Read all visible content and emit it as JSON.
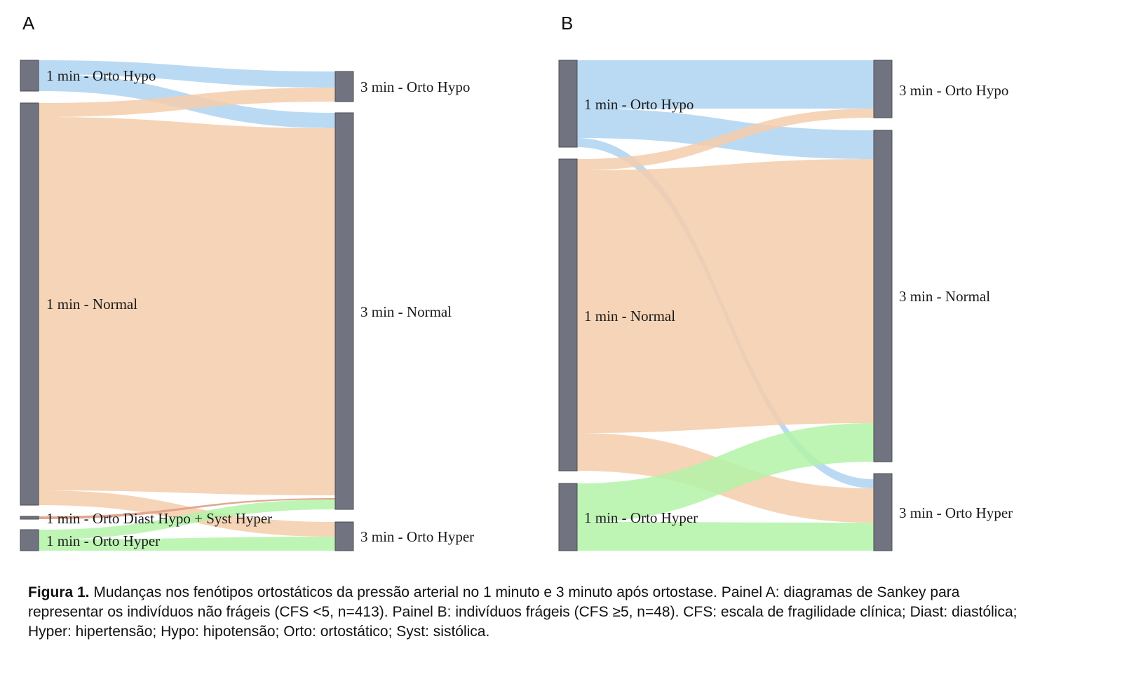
{
  "colors": {
    "hypo": "#aed3f1",
    "normal": "#f4ccaa",
    "hyper": "#b3f3a8",
    "diast": "#e0a28a",
    "node": "#717480"
  },
  "panels": [
    {
      "letter": "A",
      "nodes": {
        "left": [
          {
            "id": "L_hypo",
            "label": "1 min - Orto Hypo"
          },
          {
            "id": "L_norm",
            "label": "1 min - Normal"
          },
          {
            "id": "L_diast",
            "label": "1 min - Orto Diast Hypo + Syst Hyper"
          },
          {
            "id": "L_hyper",
            "label": "1 min - Orto Hyper"
          }
        ],
        "right": [
          {
            "id": "R_hypo",
            "label": "3 min - Orto Hypo"
          },
          {
            "id": "R_norm",
            "label": "3 min - Normal"
          },
          {
            "id": "R_hyper",
            "label": "3 min - Orto Hyper"
          }
        ]
      },
      "flows": [
        {
          "from": "L_hypo",
          "to": "R_hypo",
          "type": "hypo"
        },
        {
          "from": "L_hypo",
          "to": "R_norm",
          "type": "hypo"
        },
        {
          "from": "L_norm",
          "to": "R_hypo",
          "type": "normal"
        },
        {
          "from": "L_norm",
          "to": "R_norm",
          "type": "normal"
        },
        {
          "from": "L_norm",
          "to": "R_hyper",
          "type": "normal"
        },
        {
          "from": "L_diast",
          "to": "R_norm",
          "type": "diast"
        },
        {
          "from": "L_hyper",
          "to": "R_norm",
          "type": "hyper"
        },
        {
          "from": "L_hyper",
          "to": "R_hyper",
          "type": "hyper"
        }
      ]
    },
    {
      "letter": "B",
      "nodes": {
        "left": [
          {
            "id": "L_hypo",
            "label": "1 min - Orto Hypo"
          },
          {
            "id": "L_norm",
            "label": "1 min - Normal"
          },
          {
            "id": "L_hyper",
            "label": "1 min - Orto Hyper"
          }
        ],
        "right": [
          {
            "id": "R_hypo",
            "label": "3 min - Orto Hypo"
          },
          {
            "id": "R_norm",
            "label": "3 min - Normal"
          },
          {
            "id": "R_hyper",
            "label": "3 min - Orto Hyper"
          }
        ]
      },
      "flows": [
        {
          "from": "L_hypo",
          "to": "R_hypo",
          "type": "hypo"
        },
        {
          "from": "L_hypo",
          "to": "R_norm",
          "type": "hypo"
        },
        {
          "from": "L_hypo",
          "to": "R_hyper",
          "type": "hypo"
        },
        {
          "from": "L_norm",
          "to": "R_hypo",
          "type": "normal"
        },
        {
          "from": "L_norm",
          "to": "R_norm",
          "type": "normal"
        },
        {
          "from": "L_norm",
          "to": "R_hyper",
          "type": "normal"
        },
        {
          "from": "L_hyper",
          "to": "R_norm",
          "type": "hyper"
        },
        {
          "from": "L_hyper",
          "to": "R_hyper",
          "type": "hyper"
        }
      ]
    }
  ],
  "caption": {
    "bold": "Figura 1.",
    "text": " Mudanças nos fenótipos ortostáticos da pressão arterial no 1 minuto e 3 minuto após ortostase. Painel A: diagramas de Sankey para representar os indivíduos não frágeis (CFS <5, n=413). Painel B: indivíduos frágeis (CFS ≥5, n=48). CFS: escala de fragilidade clínica; Diast: diastólica; Hyper: hipertensão; Hypo: hipotensão; Orto: ortostático; Syst: sistólica."
  }
}
